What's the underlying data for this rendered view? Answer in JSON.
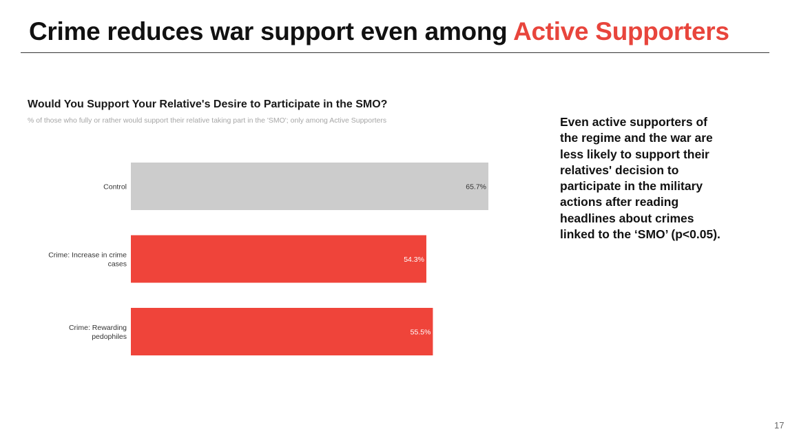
{
  "slide": {
    "title_main": "Crime reduces war support even among ",
    "title_highlight": "Active Supporters",
    "takeaway": "Even active supporters of the regime and the war are less likely to support their relatives' decision to participate in the military actions after reading headlines about crimes linked to the ‘SMO’ (p<0.05).",
    "page_number": "17"
  },
  "colors": {
    "accent": "#e8453c",
    "control_bar": "#cccccc",
    "crime_bar": "#ef443a"
  },
  "chart_data": {
    "type": "bar",
    "orientation": "horizontal",
    "title": "Would You Support Your Relative's Desire to Participate in the SMO?",
    "subtitle": "% of those who fully or rather would support their relative taking part in the 'SMO'; only among Active Supporters",
    "categories": [
      [
        "Control"
      ],
      [
        "Crime: Increase in crime",
        "cases"
      ],
      [
        "Crime: Rewarding",
        "pedophiles"
      ]
    ],
    "values": [
      65.7,
      54.3,
      55.5
    ],
    "data_labels": [
      "65.7%",
      "54.3%",
      "55.5%"
    ],
    "bar_colors": [
      "#cccccc",
      "#ef443a",
      "#ef443a"
    ],
    "label_colors": [
      "#333333",
      "#ffffff",
      "#ffffff"
    ],
    "xlim": [
      0,
      100
    ],
    "xlabel": "",
    "ylabel": "",
    "grid": false,
    "legend": "none"
  }
}
